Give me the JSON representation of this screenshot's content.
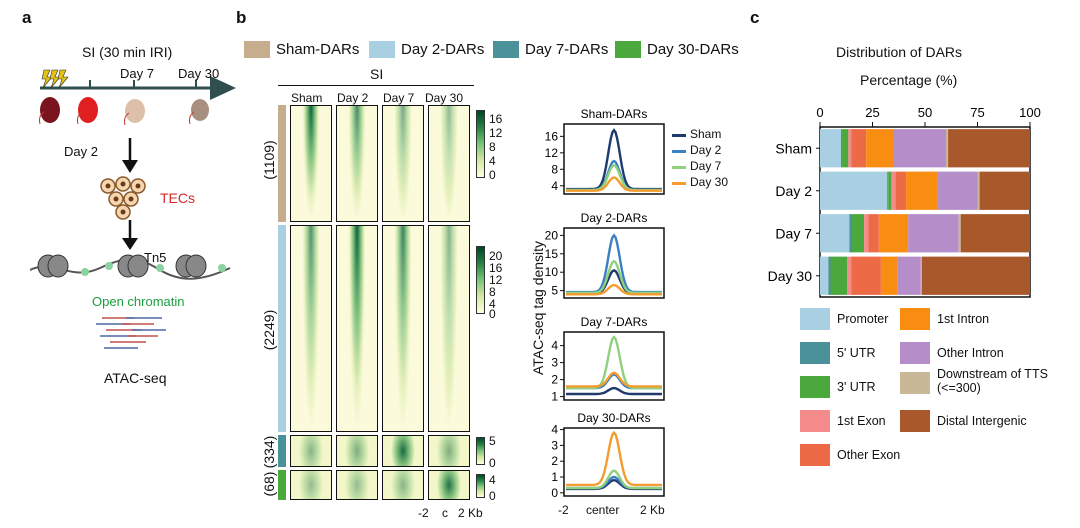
{
  "panel_a": {
    "label": "a",
    "title": "SI (30 min IRI)",
    "timeline_days": [
      "Day 2",
      "Day 7",
      "Day 30"
    ],
    "tecs_label": "TECs",
    "tn5_label": "Tn5",
    "open_chromatin_label": "Open chromatin",
    "assay_label": "ATAC-seq",
    "colors": {
      "tecs": "#d62728",
      "open_chromatin": "#1b9e3e",
      "arrow": "#2f4f4f"
    }
  },
  "panel_b": {
    "label": "b",
    "legend": [
      {
        "name": "Sham-DARs",
        "color": "#c5ad8d"
      },
      {
        "name": "Day 2-DARs",
        "color": "#a9cfe3"
      },
      {
        "name": "Day 7-DARs",
        "color": "#4a9199"
      },
      {
        "name": "Day 30-DARs",
        "color": "#4aa83c"
      }
    ],
    "heatmap_group_title": "SI",
    "heatmap_columns": [
      "Sham",
      "Day 2",
      "Day 7",
      "Day 30"
    ],
    "heatmap_rows": [
      {
        "count": "(1109)",
        "color": "#c5ad8d",
        "colorbar_ticks": [
          "16",
          "12",
          "8",
          "4",
          "0"
        ]
      },
      {
        "count": "(2249)",
        "color": "#a9cfe3",
        "colorbar_ticks": [
          "20",
          "16",
          "12",
          "8",
          "4",
          "0"
        ]
      },
      {
        "count": "(334)",
        "color": "#4a9199",
        "colorbar_ticks": [
          "5",
          "0"
        ]
      },
      {
        "count": "(68)",
        "color": "#4aa83c",
        "colorbar_ticks": [
          "4",
          "0"
        ]
      }
    ],
    "heatmap_xaxis": [
      "-2",
      "c",
      "2 Kb"
    ],
    "profile_ylabel": "ATAC-seq tag density",
    "profile_xaxis": [
      "-2",
      "center",
      "2 Kb"
    ],
    "profile_legend": [
      {
        "name": "Sham",
        "color": "#1f3b6e"
      },
      {
        "name": "Day 2",
        "color": "#3b7fc4"
      },
      {
        "name": "Day 7",
        "color": "#8fd17c"
      },
      {
        "name": "Day 30",
        "color": "#f39c2f"
      }
    ]
  },
  "panel_c": {
    "label": "c",
    "title": "Distribution of DARs",
    "xlabel": "Percentage (%)",
    "legend_items": [
      {
        "name": "Promoter",
        "color": "#a9cfe3"
      },
      {
        "name": "1st Intron",
        "color": "#f98d12"
      },
      {
        "name": "5' UTR",
        "color": "#4a9199"
      },
      {
        "name": "Other Intron",
        "color": "#b48dc9"
      },
      {
        "name": "3' UTR",
        "color": "#4aa83c"
      },
      {
        "name": "Downstream of TTS (<=300)",
        "color": "#c8b898"
      },
      {
        "name": "1st Exon",
        "color": "#f58a8a"
      },
      {
        "name": "Distal Intergenic",
        "color": "#a8582a"
      },
      {
        "name": "Other Exon",
        "color": "#ec6a46"
      }
    ]
  },
  "chart_data": [
    {
      "type": "line",
      "title": "Sham-DARs",
      "ylabel": "ATAC-seq tag density",
      "x": [
        -2,
        "center",
        2
      ],
      "x_tick_labels": [
        "-2",
        "center",
        "2 Kb"
      ],
      "ylim": [
        2,
        19
      ],
      "yticks": [
        4,
        8,
        12,
        16
      ],
      "series": [
        {
          "name": "Sham",
          "peak": 17.5,
          "base": 3.2,
          "color": "#1f3b6e"
        },
        {
          "name": "Day 2",
          "peak": 10.0,
          "base": 3.0,
          "color": "#3b7fc4"
        },
        {
          "name": "Day 7",
          "peak": 9.0,
          "base": 3.0,
          "color": "#8fd17c"
        },
        {
          "name": "Day 30",
          "peak": 6.0,
          "base": 2.8,
          "color": "#f39c2f"
        }
      ]
    },
    {
      "type": "line",
      "title": "Day 2-DARs",
      "ylabel": "ATAC-seq tag density",
      "x": [
        -2,
        "center",
        2
      ],
      "x_tick_labels": [
        "-2",
        "center",
        "2 Kb"
      ],
      "ylim": [
        3,
        22
      ],
      "yticks": [
        5,
        10,
        15,
        20
      ],
      "series": [
        {
          "name": "Sham",
          "peak": 10.5,
          "base": 4.3,
          "color": "#1f3b6e"
        },
        {
          "name": "Day 2",
          "peak": 20.0,
          "base": 4.6,
          "color": "#3b7fc4"
        },
        {
          "name": "Day 7",
          "peak": 13.0,
          "base": 4.4,
          "color": "#8fd17c"
        },
        {
          "name": "Day 30",
          "peak": 6.5,
          "base": 4.0,
          "color": "#f39c2f"
        }
      ]
    },
    {
      "type": "line",
      "title": "Day 7-DARs",
      "ylabel": "ATAC-seq tag density",
      "x": [
        -2,
        "center",
        2
      ],
      "x_tick_labels": [
        "-2",
        "center",
        "2 Kb"
      ],
      "ylim": [
        0.8,
        4.8
      ],
      "yticks": [
        1,
        2,
        3,
        4
      ],
      "series": [
        {
          "name": "Sham",
          "peak": 1.5,
          "base": 1.15,
          "color": "#1f3b6e"
        },
        {
          "name": "Day 2",
          "peak": 2.3,
          "base": 1.5,
          "color": "#3b7fc4"
        },
        {
          "name": "Day 7",
          "peak": 4.5,
          "base": 1.5,
          "color": "#8fd17c"
        },
        {
          "name": "Day 30",
          "peak": 2.4,
          "base": 1.6,
          "color": "#f39c2f"
        }
      ]
    },
    {
      "type": "line",
      "title": "Day 30-DARs",
      "ylabel": "ATAC-seq tag density",
      "x": [
        -2,
        "center",
        2
      ],
      "x_tick_labels": [
        "-2",
        "center",
        "2 Kb"
      ],
      "ylim": [
        -0.2,
        4.1
      ],
      "yticks": [
        0,
        1,
        2,
        3,
        4
      ],
      "series": [
        {
          "name": "Sham",
          "peak": 0.8,
          "base": 0.25,
          "color": "#1f3b6e"
        },
        {
          "name": "Day 2",
          "peak": 1.0,
          "base": 0.3,
          "color": "#3b7fc4"
        },
        {
          "name": "Day 7",
          "peak": 1.4,
          "base": 0.3,
          "color": "#8fd17c"
        },
        {
          "name": "Day 30",
          "peak": 3.8,
          "base": 0.5,
          "color": "#f39c2f"
        }
      ]
    },
    {
      "type": "bar",
      "stacked": "horizontal",
      "title": "Distribution of DARs",
      "xlabel": "Percentage (%)",
      "xlim": [
        0,
        100
      ],
      "xticks": [
        0,
        25,
        50,
        75,
        100
      ],
      "categories": [
        "Sham",
        "Day 2",
        "Day 7",
        "Day 30"
      ],
      "series": [
        {
          "name": "Promoter",
          "color": "#a9cfe3",
          "values": [
            10,
            32,
            14,
            4
          ]
        },
        {
          "name": "5' UTR",
          "color": "#4a9199",
          "values": [
            0.5,
            0.5,
            1,
            1
          ]
        },
        {
          "name": "3' UTR",
          "color": "#4aa83c",
          "values": [
            3,
            1.5,
            6,
            8
          ]
        },
        {
          "name": "1st Exon",
          "color": "#f58a8a",
          "values": [
            1.5,
            2,
            2,
            2
          ]
        },
        {
          "name": "Other Exon",
          "color": "#ec6a46",
          "values": [
            7,
            5,
            5,
            14
          ]
        },
        {
          "name": "1st Intron",
          "color": "#f98d12",
          "values": [
            13,
            15,
            14,
            8
          ]
        },
        {
          "name": "Other Intron",
          "color": "#b48dc9",
          "values": [
            25,
            19,
            24,
            11
          ]
        },
        {
          "name": "Downstream of TTS (<=300)",
          "color": "#c8b898",
          "values": [
            1,
            1,
            1,
            0.5
          ]
        },
        {
          "name": "Distal Intergenic",
          "color": "#a8582a",
          "values": [
            39,
            24,
            33,
            51.5
          ]
        }
      ]
    }
  ]
}
